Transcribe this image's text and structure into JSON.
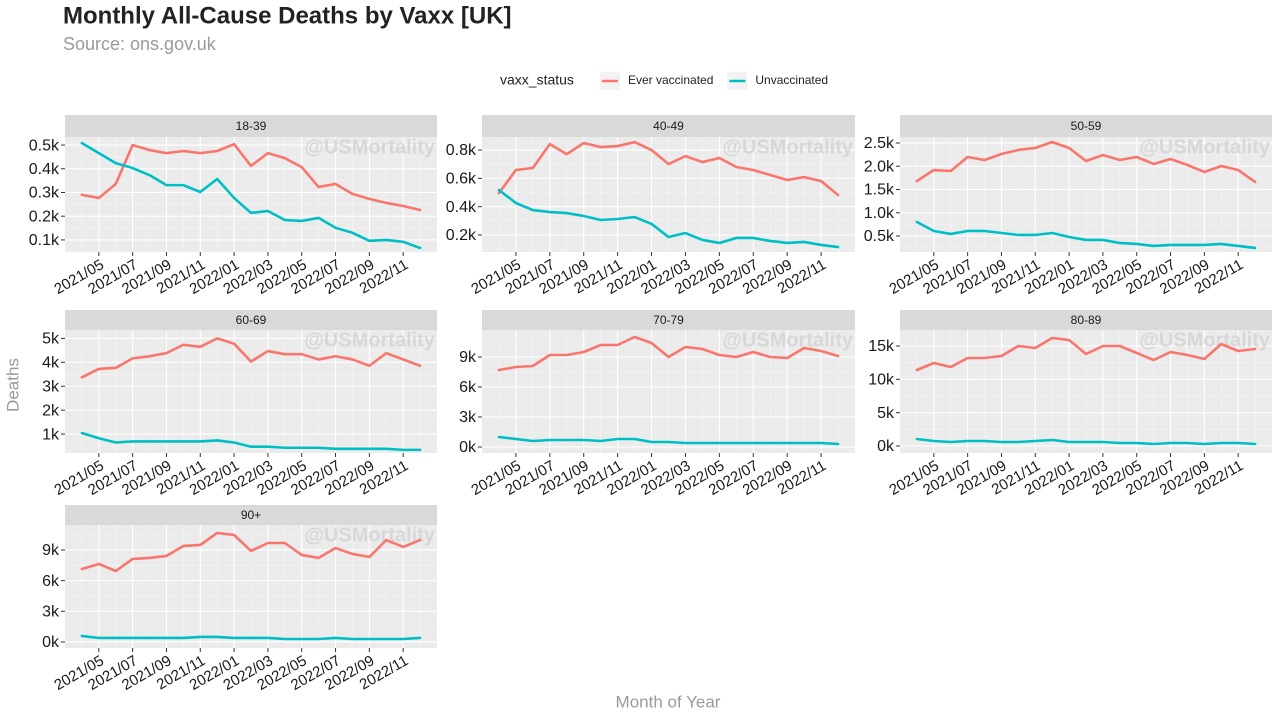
{
  "title": "Monthly All-Cause Deaths by Vaxx [UK]",
  "subtitle": "Source: ons.gov.uk",
  "x_label": "Month of Year",
  "y_label": "Deaths",
  "watermark": "@USMortality",
  "legend": {
    "title": "vaxx_status",
    "entries": [
      {
        "name": "Ever vaccinated",
        "color": "#F8766D"
      },
      {
        "name": "Unvaccinated",
        "color": "#00BFC4"
      }
    ]
  },
  "chart_data": [
    {
      "type": "line",
      "title": "18-39",
      "categories": [
        null,
        "2021/05",
        null,
        "2021/07",
        null,
        "2021/09",
        null,
        "2021/11",
        null,
        "2022/01",
        null,
        "2022/03",
        null,
        "2022/05",
        null,
        "2022/07",
        null,
        "2022/09",
        null,
        "2022/11",
        null
      ],
      "series": [
        {
          "values": [
            290,
            277,
            336,
            500,
            479,
            466,
            475,
            466,
            475,
            504,
            412,
            466,
            445,
            407,
            323,
            336,
            294,
            273,
            256,
            243,
            226
          ]
        },
        {
          "values": [
            508,
            466,
            424,
            403,
            373,
            331,
            331,
            302,
            357,
            277,
            214,
            222,
            184,
            180,
            193,
            151,
            130,
            96,
            100,
            92,
            66
          ]
        }
      ],
      "ylim": [
        49,
        534
      ],
      "yticks": [
        {
          "value": 100,
          "label": "0.1k"
        },
        {
          "value": 200,
          "label": "0.2k"
        },
        {
          "value": 300,
          "label": "0.3k"
        },
        {
          "value": 400,
          "label": "0.4k"
        },
        {
          "value": 500,
          "label": "0.5k"
        }
      ],
      "grid": true
    },
    {
      "type": "line",
      "title": "40-49",
      "categories": [
        null,
        "2021/05",
        null,
        "2021/07",
        null,
        "2021/09",
        null,
        "2021/11",
        null,
        "2022/01",
        null,
        "2022/03",
        null,
        "2022/05",
        null,
        "2022/07",
        null,
        "2022/09",
        null,
        "2022/11",
        null
      ],
      "series": [
        {
          "values": [
            496,
            659,
            673,
            842,
            771,
            849,
            821,
            828,
            856,
            800,
            701,
            757,
            715,
            744,
            680,
            659,
            624,
            588,
            609,
            581,
            482
          ]
        },
        {
          "values": [
            518,
            426,
            376,
            362,
            355,
            334,
            306,
            313,
            327,
            278,
            186,
            214,
            165,
            144,
            179,
            179,
            158,
            144,
            151,
            130,
            115
          ]
        }
      ],
      "ylim": [
        80,
        892
      ],
      "yticks": [
        {
          "value": 200,
          "label": "0.2k"
        },
        {
          "value": 400,
          "label": "0.4k"
        },
        {
          "value": 600,
          "label": "0.6k"
        },
        {
          "value": 800,
          "label": "0.8k"
        }
      ],
      "grid": true
    },
    {
      "type": "line",
      "title": "50-59",
      "categories": [
        null,
        "2021/05",
        null,
        "2021/07",
        null,
        "2021/09",
        null,
        "2021/11",
        null,
        "2022/01",
        null,
        "2022/03",
        null,
        "2022/05",
        null,
        "2022/07",
        null,
        "2022/09",
        null,
        "2022/11",
        null
      ],
      "series": [
        {
          "values": [
            1683,
            1919,
            1898,
            2199,
            2135,
            2264,
            2350,
            2393,
            2522,
            2393,
            2113,
            2242,
            2135,
            2199,
            2049,
            2156,
            2027,
            1877,
            2006,
            1919,
            1662
          ]
        },
        {
          "values": [
            802,
            608,
            544,
            608,
            608,
            565,
            522,
            522,
            565,
            479,
            415,
            415,
            350,
            329,
            286,
            307,
            307,
            307,
            329,
            286,
            243
          ]
        }
      ],
      "ylim": [
        156,
        2629
      ],
      "yticks": [
        {
          "value": 500,
          "label": "0.5k"
        },
        {
          "value": 1000,
          "label": "1.0k"
        },
        {
          "value": 1500,
          "label": "1.5k"
        },
        {
          "value": 2000,
          "label": "2.0k"
        },
        {
          "value": 2500,
          "label": "2.5k"
        }
      ],
      "grid": true
    },
    {
      "type": "line",
      "title": "60-69",
      "categories": [
        null,
        "2021/05",
        null,
        "2021/07",
        null,
        "2021/09",
        null,
        "2021/11",
        null,
        "2022/01",
        null,
        "2022/03",
        null,
        "2022/05",
        null,
        "2022/07",
        null,
        "2022/09",
        null,
        "2022/11",
        null
      ],
      "series": [
        {
          "values": [
            3374,
            3725,
            3769,
            4165,
            4253,
            4385,
            4736,
            4648,
            5000,
            4780,
            4033,
            4472,
            4341,
            4341,
            4121,
            4253,
            4121,
            3857,
            4385,
            4121,
            3857
          ]
        },
        {
          "values": [
            1044,
            824,
            648,
            692,
            692,
            692,
            692,
            692,
            736,
            648,
            472,
            472,
            428,
            428,
            428,
            384,
            384,
            384,
            384,
            340,
            340
          ]
        }
      ],
      "ylim": [
        209,
        5352
      ],
      "yticks": [
        {
          "value": 1000,
          "label": "1k"
        },
        {
          "value": 2000,
          "label": "2k"
        },
        {
          "value": 3000,
          "label": "3k"
        },
        {
          "value": 4000,
          "label": "4k"
        },
        {
          "value": 5000,
          "label": "5k"
        }
      ],
      "grid": true
    },
    {
      "type": "line",
      "title": "70-79",
      "categories": [
        null,
        "2021/05",
        null,
        "2021/07",
        null,
        "2021/09",
        null,
        "2021/11",
        null,
        "2022/01",
        null,
        "2022/03",
        null,
        "2022/05",
        null,
        "2022/07",
        null,
        "2022/09",
        null,
        "2022/11",
        null
      ],
      "series": [
        {
          "values": [
            7700,
            8000,
            8100,
            9200,
            9200,
            9500,
            10200,
            10200,
            11000,
            10400,
            9000,
            10000,
            9800,
            9200,
            9000,
            9500,
            9000,
            8900,
            9900,
            9600,
            9100
          ]
        },
        {
          "values": [
            1000,
            800,
            600,
            700,
            700,
            700,
            600,
            800,
            800,
            500,
            500,
            400,
            400,
            400,
            400,
            400,
            400,
            400,
            400,
            400,
            300
          ]
        }
      ],
      "ylim": [
        -600,
        11700
      ],
      "yticks": [
        {
          "value": 0,
          "label": "0k"
        },
        {
          "value": 3000,
          "label": "3k"
        },
        {
          "value": 6000,
          "label": "6k"
        },
        {
          "value": 9000,
          "label": "9k"
        }
      ],
      "grid": true
    },
    {
      "type": "line",
      "title": "80-89",
      "categories": [
        null,
        "2021/05",
        null,
        "2021/07",
        null,
        "2021/09",
        null,
        "2021/11",
        null,
        "2022/01",
        null,
        "2022/03",
        null,
        "2022/05",
        null,
        "2022/07",
        null,
        "2022/09",
        null,
        "2022/11",
        null
      ],
      "series": [
        {
          "values": [
            11400,
            12450,
            11850,
            13200,
            13200,
            13500,
            15000,
            14700,
            16200,
            15900,
            13800,
            15000,
            15000,
            13950,
            12900,
            14100,
            13650,
            13050,
            15300,
            14250,
            14550
          ]
        },
        {
          "values": [
            1050,
            750,
            600,
            750,
            750,
            600,
            600,
            750,
            900,
            600,
            600,
            600,
            450,
            450,
            300,
            450,
            450,
            300,
            450,
            450,
            300
          ]
        }
      ],
      "ylim": [
        -1050,
        17400
      ],
      "yticks": [
        {
          "value": 0,
          "label": "0k"
        },
        {
          "value": 5000,
          "label": "5k"
        },
        {
          "value": 10000,
          "label": "10k"
        },
        {
          "value": 15000,
          "label": "15k"
        }
      ],
      "grid": true
    },
    {
      "type": "line",
      "title": "90+",
      "categories": [
        null,
        "2021/05",
        null,
        "2021/07",
        null,
        "2021/09",
        null,
        "2021/11",
        null,
        "2022/01",
        null,
        "2022/03",
        null,
        "2022/05",
        null,
        "2022/07",
        null,
        "2022/09",
        null,
        "2022/11",
        null
      ],
      "series": [
        {
          "values": [
            7140,
            7630,
            6940,
            8120,
            8220,
            8410,
            9390,
            9490,
            10660,
            10470,
            8900,
            9680,
            9680,
            8510,
            8220,
            9190,
            8610,
            8310,
            9970,
            9290,
            9970
          ]
        },
        {
          "values": [
            590,
            390,
            390,
            390,
            390,
            390,
            390,
            490,
            490,
            390,
            390,
            390,
            290,
            290,
            290,
            390,
            290,
            290,
            290,
            290,
            390
          ]
        }
      ],
      "ylim": [
        -590,
        11440
      ],
      "yticks": [
        {
          "value": 0,
          "label": "0k"
        },
        {
          "value": 3000,
          "label": "3k"
        },
        {
          "value": 6000,
          "label": "6k"
        },
        {
          "value": 9000,
          "label": "9k"
        }
      ],
      "grid": true
    }
  ]
}
